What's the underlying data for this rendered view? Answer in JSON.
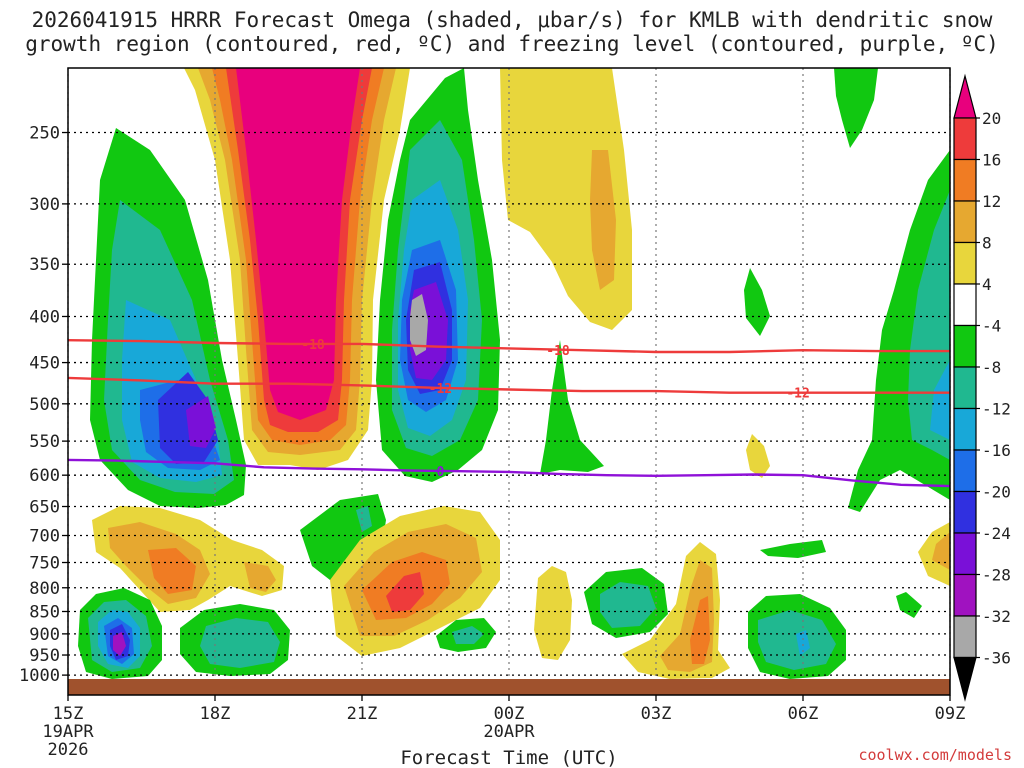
{
  "title_line1": "2026041915 HRRR Forecast Omega (shaded, μbar/s) for KMLB with dendritic snow",
  "title_line2": "growth region (contoured, red, ºC) and freezing level (contoured, purple, ºC)",
  "credit": "coolwx.com/models",
  "chart_data": {
    "type": "time-height contour",
    "variable": "Omega",
    "units": "μbar/s",
    "xlabel": "Forecast Time (UTC)",
    "ylabel": "",
    "x_range_hours": [
      0,
      18
    ],
    "y_range_hPa": [
      1025,
      200
    ],
    "x_ticks": [
      {
        "hour": 0,
        "label": "15Z",
        "sub": [
          "19APR",
          "2026"
        ]
      },
      {
        "hour": 3,
        "label": "18Z",
        "sub": []
      },
      {
        "hour": 6,
        "label": "21Z",
        "sub": []
      },
      {
        "hour": 9,
        "label": "00Z",
        "sub": [
          "20APR"
        ]
      },
      {
        "hour": 12,
        "label": "03Z",
        "sub": []
      },
      {
        "hour": 15,
        "label": "06Z",
        "sub": []
      },
      {
        "hour": 18,
        "label": "09Z",
        "sub": []
      }
    ],
    "y_ticks": [
      250,
      300,
      350,
      400,
      450,
      500,
      550,
      600,
      650,
      700,
      750,
      800,
      850,
      900,
      950,
      1000
    ],
    "colorbar": {
      "labels": [
        "20",
        "16",
        "12",
        "8",
        "4",
        "-4",
        "-8",
        "-12",
        "-16",
        "-20",
        "-24",
        "-28",
        "-32",
        "-36"
      ],
      "levels": [
        20,
        16,
        12,
        8,
        4,
        -4,
        -8,
        -12,
        -16,
        -20,
        -24,
        -28,
        -32,
        -36
      ],
      "colors": [
        "#e8007d",
        "#ee3b3b",
        "#f07c23",
        "#e6a830",
        "#e8d63c",
        "#ffffff",
        "#11c811",
        "#20b890",
        "#18a8d8",
        "#1e6ee8",
        "#3030e0",
        "#7a10d8",
        "#a012c0",
        "#a8a8a8",
        "#000000"
      ]
    },
    "contours": [
      {
        "name": "dendritic-growth -18C",
        "label": "-18",
        "color": "#ee3b3b",
        "points": [
          [
            0,
            425
          ],
          [
            1.5,
            426
          ],
          [
            3,
            428
          ],
          [
            4.5,
            429
          ],
          [
            6,
            429
          ],
          [
            7.5,
            432
          ],
          [
            9,
            434
          ],
          [
            10.5,
            436
          ],
          [
            12,
            438
          ],
          [
            13.5,
            438
          ],
          [
            15,
            436
          ],
          [
            16.5,
            437
          ],
          [
            18,
            437
          ]
        ]
      },
      {
        "name": "dendritic-growth -12C",
        "label": "-12",
        "color": "#ee3b3b",
        "points": [
          [
            0,
            468
          ],
          [
            1.5,
            471
          ],
          [
            3,
            475
          ],
          [
            4.5,
            475
          ],
          [
            6,
            477
          ],
          [
            7.5,
            480
          ],
          [
            9,
            482
          ],
          [
            10.5,
            484
          ],
          [
            12,
            484
          ],
          [
            13.5,
            486
          ],
          [
            15,
            486
          ],
          [
            16.5,
            486
          ],
          [
            18,
            486
          ]
        ]
      },
      {
        "name": "freezing-level 0C",
        "label": "0",
        "color": "#8f11d8",
        "points": [
          [
            0,
            577
          ],
          [
            1,
            578
          ],
          [
            2,
            580
          ],
          [
            3,
            582
          ],
          [
            4,
            588
          ],
          [
            5,
            590
          ],
          [
            6,
            591
          ],
          [
            7,
            593
          ],
          [
            8,
            594
          ],
          [
            9,
            595
          ],
          [
            10,
            598
          ],
          [
            11,
            600
          ],
          [
            12,
            601
          ],
          [
            13,
            600
          ],
          [
            14,
            599
          ],
          [
            15,
            600
          ],
          [
            16,
            608
          ],
          [
            17,
            615
          ],
          [
            18,
            617
          ]
        ]
      }
    ],
    "features": [
      {
        "kind": "rising",
        "name": "ascent-column-16z",
        "x": 1.2,
        "p": 520,
        "peak": -32
      },
      {
        "kind": "rising",
        "name": "ascent-column-22z",
        "x": 7.0,
        "p": 400,
        "peak": -36
      },
      {
        "kind": "sinking",
        "name": "subsidence-19z",
        "x": 4.0,
        "p": 350,
        "peak": 20
      },
      {
        "kind": "sinking",
        "name": "subsidence-22z-low",
        "x": 7.0,
        "p": 810,
        "peak": 16
      },
      {
        "kind": "rising",
        "name": "low-level-ascent-15z",
        "x": 0.8,
        "p": 920,
        "peak": -28
      }
    ]
  }
}
